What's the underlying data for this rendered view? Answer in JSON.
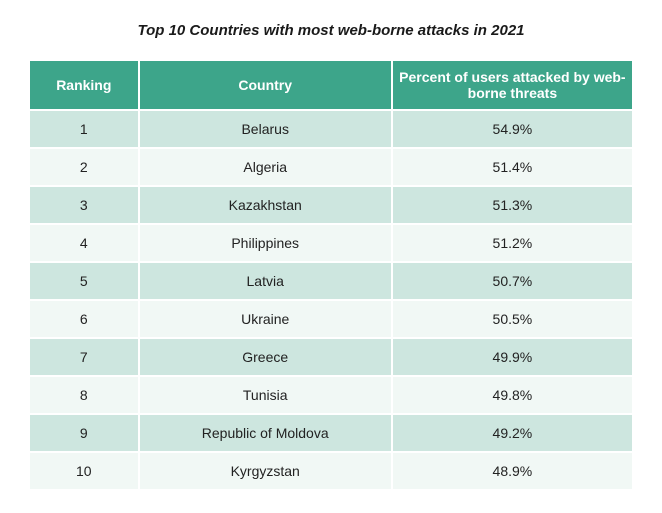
{
  "title": "Top 10 Countries with most web-borne attacks in 2021",
  "table": {
    "header_background": "#3da58a",
    "header_text_color": "#ffffff",
    "row_color_even": "#cde6df",
    "row_color_odd": "#f1f8f5",
    "text_color": "#222222",
    "title_fontsize": 15,
    "header_fontsize": 14,
    "cell_fontsize": 14,
    "columns": [
      {
        "key": "rank",
        "label": "Ranking"
      },
      {
        "key": "country",
        "label": "Country"
      },
      {
        "key": "pct",
        "label": "Percent of users attacked by web-borne threats"
      }
    ],
    "rows": [
      {
        "rank": "1",
        "country": "Belarus",
        "pct": "54.9%"
      },
      {
        "rank": "2",
        "country": "Algeria",
        "pct": "51.4%"
      },
      {
        "rank": "3",
        "country": "Kazakhstan",
        "pct": "51.3%"
      },
      {
        "rank": "4",
        "country": "Philippines",
        "pct": "51.2%"
      },
      {
        "rank": "5",
        "country": "Latvia",
        "pct": "50.7%"
      },
      {
        "rank": "6",
        "country": "Ukraine",
        "pct": "50.5%"
      },
      {
        "rank": "7",
        "country": "Greece",
        "pct": "49.9%"
      },
      {
        "rank": "8",
        "country": "Tunisia",
        "pct": "49.8%"
      },
      {
        "rank": "9",
        "country": "Republic of Moldova",
        "pct": "49.2%"
      },
      {
        "rank": "10",
        "country": "Kyrgyzstan",
        "pct": "48.9%"
      }
    ]
  }
}
